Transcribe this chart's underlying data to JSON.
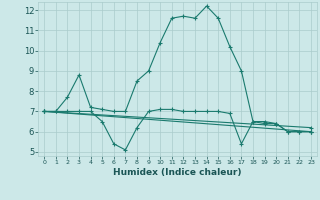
{
  "title": "",
  "xlabel": "Humidex (Indice chaleur)",
  "ylabel": "",
  "xlim": [
    -0.5,
    23.5
  ],
  "ylim": [
    4.8,
    12.4
  ],
  "yticks": [
    5,
    6,
    7,
    8,
    9,
    10,
    11,
    12
  ],
  "xticks": [
    0,
    1,
    2,
    3,
    4,
    5,
    6,
    7,
    8,
    9,
    10,
    11,
    12,
    13,
    14,
    15,
    16,
    17,
    18,
    19,
    20,
    21,
    22,
    23
  ],
  "bg_color": "#cce8e8",
  "line_color": "#1a7a6e",
  "grid_color": "#aacccc",
  "line1_x": [
    0,
    1,
    2,
    3,
    4,
    5,
    6,
    7,
    8,
    9,
    10,
    11,
    12,
    13,
    14,
    15,
    16,
    17,
    18,
    19,
    20,
    21,
    22,
    23
  ],
  "line1_y": [
    7.0,
    7.0,
    7.7,
    8.8,
    7.2,
    7.1,
    7.0,
    7.0,
    8.5,
    9.0,
    10.4,
    11.6,
    11.7,
    11.6,
    12.2,
    11.6,
    10.2,
    9.0,
    6.5,
    6.4,
    6.4,
    6.0,
    6.0,
    6.0
  ],
  "line2_x": [
    0,
    1,
    2,
    3,
    4,
    5,
    6,
    7,
    8,
    9,
    10,
    11,
    12,
    13,
    14,
    15,
    16,
    17,
    18,
    19,
    20,
    21,
    22,
    23
  ],
  "line2_y": [
    7.0,
    7.0,
    7.0,
    7.0,
    7.0,
    6.5,
    5.4,
    5.1,
    6.2,
    7.0,
    7.1,
    7.1,
    7.0,
    7.0,
    7.0,
    7.0,
    6.9,
    5.4,
    6.5,
    6.5,
    6.4,
    6.0,
    6.0,
    6.0
  ],
  "line3_x": [
    0,
    23
  ],
  "line3_y": [
    7.0,
    6.0
  ],
  "line4_x": [
    0,
    23
  ],
  "line4_y": [
    7.0,
    6.2
  ]
}
